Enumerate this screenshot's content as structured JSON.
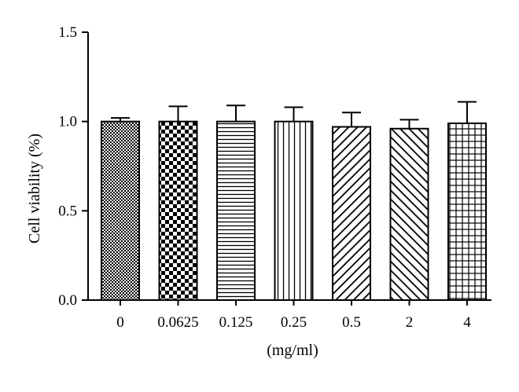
{
  "chart_data": {
    "type": "bar",
    "title": "",
    "xlabel": "(mg/ml)",
    "ylabel": "Cell viability (%)",
    "categories": [
      "0",
      "0.0625",
      "0.125",
      "0.25",
      "0.5",
      "2",
      "4"
    ],
    "values": [
      1.0,
      1.0,
      1.0,
      1.0,
      0.97,
      0.96,
      0.99
    ],
    "error": [
      0.02,
      0.085,
      0.09,
      0.08,
      0.08,
      0.05,
      0.12
    ],
    "ylim": [
      0,
      1.5
    ],
    "yticks": [
      "0.0",
      "0.5",
      "1.0",
      "1.5"
    ],
    "ytick_values": [
      0,
      0.5,
      1.0,
      1.5
    ],
    "patterns": [
      "fine-checker",
      "checker",
      "horizontal-lines",
      "vertical-lines",
      "diagonal-up",
      "diagonal-down",
      "grid"
    ],
    "grid": false,
    "legend": "none",
    "bar_color": "#ffffff",
    "stroke_color": "#000000"
  }
}
